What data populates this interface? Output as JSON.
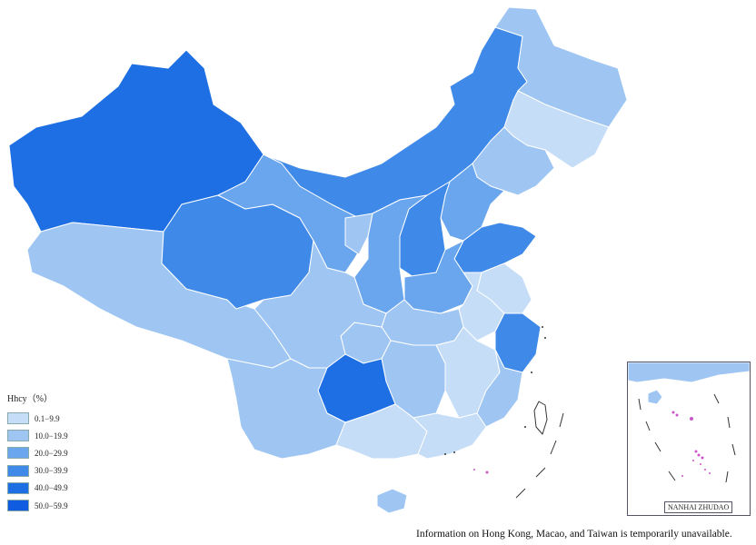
{
  "legend": {
    "title": "Hhcy（%）",
    "items": [
      {
        "label": "0.1−9.9",
        "color": "#c6ddf7"
      },
      {
        "label": "10.0−19.9",
        "color": "#9fc6f3"
      },
      {
        "label": "20.0−29.9",
        "color": "#6aa6ee"
      },
      {
        "label": "30.0−39.9",
        "color": "#3f89e8"
      },
      {
        "label": "40.0−49.9",
        "color": "#1e6fe4"
      },
      {
        "label": "50.0−59.9",
        "color": "#0f5ce0"
      }
    ]
  },
  "inset": {
    "label": "NANHAI ZHUDAO"
  },
  "footnote": "Information on Hong Kong, Macao, and Taiwan is temporarily unavailable."
}
